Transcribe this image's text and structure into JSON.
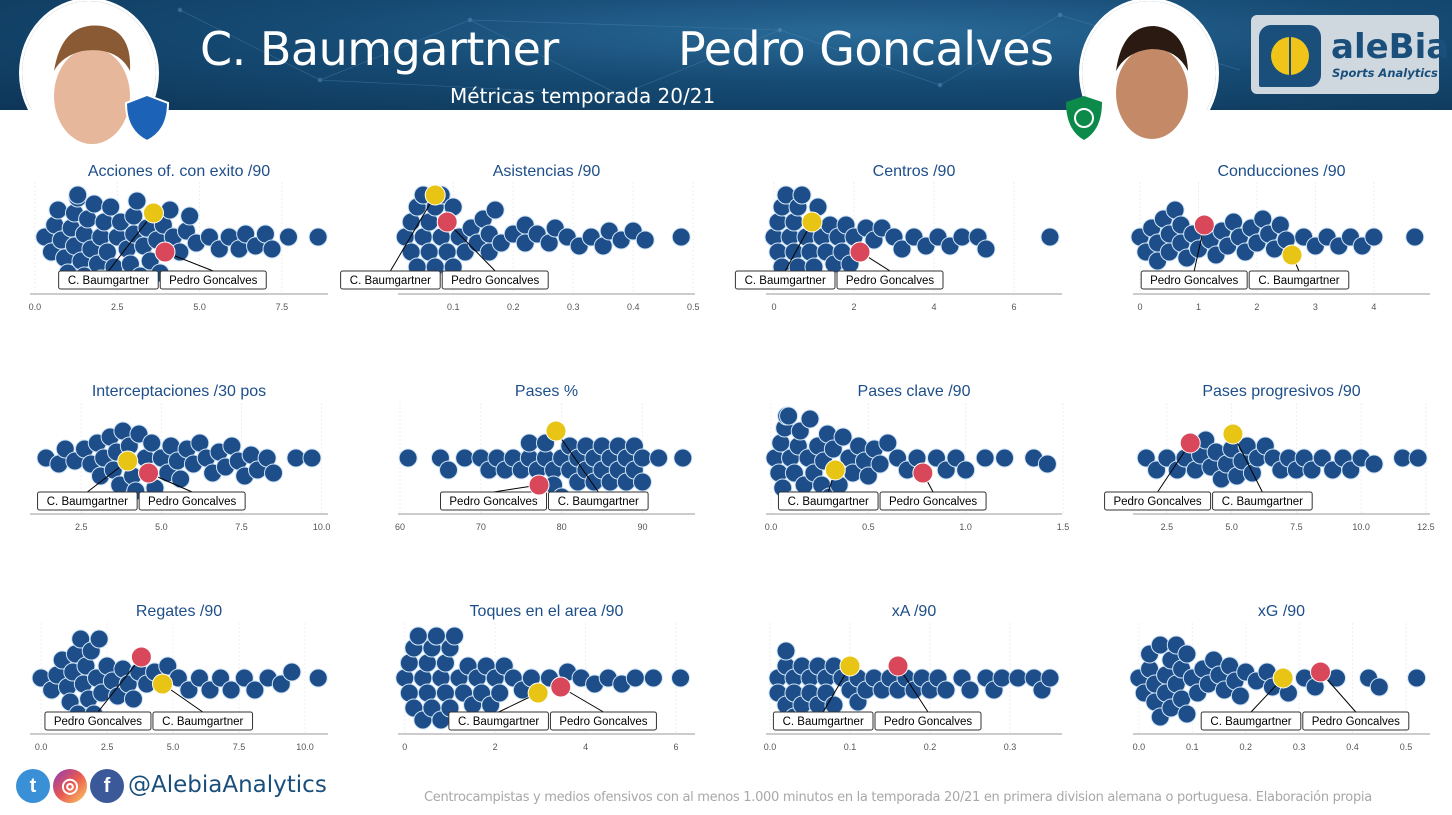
{
  "header": {
    "player_a": "C. Baumgartner",
    "player_b": "Pedro Goncalves",
    "subtitle": "Métricas temporada 20/21",
    "logo_name": "aleBia",
    "logo_sub": "Sports Analytics"
  },
  "footer": {
    "handle": "@AlebiaAnalytics",
    "note": "Centrocampistas y medios ofensivos con al menos 1.000 minutos en la temporada 20/21 en primera division alemana o portuguesa. Elaboración propia",
    "social_icons": [
      "twitter-icon",
      "instagram-icon",
      "facebook-icon"
    ]
  },
  "colors": {
    "swarm": "#1d4e89",
    "player_a": "#e8c414",
    "player_b": "#d9475a",
    "title": "#1d4e89"
  },
  "chart_data": [
    {
      "type": "scatter",
      "subtype": "beeswarm",
      "title": "Acciones of. con exito /90",
      "xlim": [
        -0.15,
        8.9
      ],
      "ticks": [
        0,
        2.5,
        5,
        7.5
      ],
      "tick_labels": [
        "0.0",
        "2.5",
        "5.0",
        "7.5"
      ],
      "values": [
        0.3,
        0.5,
        0.6,
        0.7,
        0.8,
        0.9,
        1.0,
        1.1,
        1.2,
        1.2,
        1.3,
        1.3,
        1.4,
        1.5,
        1.5,
        1.6,
        1.7,
        1.8,
        1.9,
        2.0,
        2.0,
        2.1,
        2.2,
        2.3,
        2.4,
        2.5,
        2.6,
        2.8,
        2.9,
        3.0,
        3.0,
        3.1,
        3.2,
        3.3,
        3.4,
        3.5,
        3.7,
        3.8,
        3.9,
        4.1,
        4.2,
        4.4,
        4.6,
        4.7,
        4.9,
        5.3,
        5.6,
        5.9,
        6.2,
        6.4,
        6.7,
        7.0,
        7.2,
        7.7,
        8.6
      ],
      "highlights": [
        {
          "name": "C. Baumgartner",
          "value": 3.6
        },
        {
          "name": "Pedro Goncalves",
          "value": 3.95
        }
      ]
    },
    {
      "type": "scatter",
      "subtype": "beeswarm",
      "title": "Asistencias /90",
      "xlim": [
        0.008,
        0.503
      ],
      "ticks": [
        0.1,
        0.2,
        0.3,
        0.4,
        0.5
      ],
      "tick_labels": [
        "0.1",
        "0.2",
        "0.3",
        "0.4",
        "0.5"
      ],
      "values": [
        0.02,
        0.03,
        0.03,
        0.04,
        0.04,
        0.05,
        0.05,
        0.05,
        0.06,
        0.06,
        0.07,
        0.07,
        0.08,
        0.08,
        0.08,
        0.09,
        0.1,
        0.1,
        0.11,
        0.12,
        0.13,
        0.14,
        0.15,
        0.16,
        0.16,
        0.17,
        0.18,
        0.2,
        0.22,
        0.22,
        0.24,
        0.26,
        0.27,
        0.29,
        0.31,
        0.33,
        0.35,
        0.36,
        0.38,
        0.4,
        0.42,
        0.48
      ],
      "highlights": [
        {
          "name": "C. Baumgartner",
          "value": 0.07
        },
        {
          "name": "Pedro Goncalves",
          "value": 0.09
        }
      ]
    },
    {
      "type": "scatter",
      "subtype": "beeswarm",
      "title": "Centros /90",
      "xlim": [
        -0.2,
        7.2
      ],
      "ticks": [
        0,
        2,
        4,
        6
      ],
      "tick_labels": [
        "0",
        "2",
        "4",
        "6"
      ],
      "values": [
        0.0,
        0.1,
        0.1,
        0.2,
        0.2,
        0.3,
        0.3,
        0.4,
        0.4,
        0.5,
        0.5,
        0.6,
        0.6,
        0.7,
        0.7,
        0.8,
        0.9,
        1.0,
        1.1,
        1.2,
        1.3,
        1.4,
        1.5,
        1.6,
        1.7,
        1.8,
        1.9,
        2.0,
        2.3,
        2.5,
        2.7,
        3.0,
        3.2,
        3.5,
        3.8,
        4.1,
        4.4,
        4.7,
        5.1,
        5.3,
        6.9
      ],
      "highlights": [
        {
          "name": "C. Baumgartner",
          "value": 0.95
        },
        {
          "name": "Pedro Goncalves",
          "value": 2.15
        }
      ]
    },
    {
      "type": "scatter",
      "subtype": "beeswarm",
      "title": "Conducciones /90",
      "xlim": [
        -0.12,
        4.96
      ],
      "ticks": [
        0,
        1,
        2,
        3,
        4
      ],
      "tick_labels": [
        "0",
        "1",
        "2",
        "3",
        "4"
      ],
      "values": [
        0.0,
        0.1,
        0.2,
        0.3,
        0.3,
        0.4,
        0.5,
        0.5,
        0.6,
        0.7,
        0.7,
        0.8,
        0.9,
        1.0,
        1.2,
        1.3,
        1.4,
        1.5,
        1.6,
        1.7,
        1.8,
        1.9,
        2.0,
        2.1,
        2.2,
        2.3,
        2.4,
        2.5,
        2.8,
        3.0,
        3.2,
        3.4,
        3.6,
        3.8,
        4.0,
        4.7
      ],
      "highlights": [
        {
          "name": "C. Baumgartner",
          "value": 2.6
        },
        {
          "name": "Pedro Goncalves",
          "value": 1.1
        }
      ]
    },
    {
      "type": "scatter",
      "subtype": "beeswarm",
      "title": "Interceptaciones /30 pos",
      "xlim": [
        0.9,
        10.2
      ],
      "ticks": [
        2.5,
        5,
        7.5,
        10
      ],
      "tick_labels": [
        "2.5",
        "5.0",
        "7.5",
        "10.0"
      ],
      "values": [
        1.4,
        1.8,
        2.0,
        2.3,
        2.6,
        2.8,
        3.0,
        3.1,
        3.2,
        3.4,
        3.5,
        3.6,
        3.7,
        3.8,
        4.0,
        4.1,
        4.2,
        4.3,
        4.5,
        4.7,
        4.8,
        5.0,
        5.2,
        5.3,
        5.5,
        5.6,
        5.8,
        6.0,
        6.2,
        6.4,
        6.6,
        6.8,
        7.0,
        7.2,
        7.4,
        7.6,
        7.8,
        8.0,
        8.3,
        8.5,
        9.2,
        9.7
      ],
      "highlights": [
        {
          "name": "C. Baumgartner",
          "value": 3.95
        },
        {
          "name": "Pedro Goncalves",
          "value": 4.6
        }
      ]
    },
    {
      "type": "scatter",
      "subtype": "beeswarm",
      "title": "Pases %",
      "xlim": [
        59.75,
        96.5
      ],
      "ticks": [
        60,
        70,
        80,
        90
      ],
      "tick_labels": [
        "60",
        "70",
        "80",
        "90"
      ],
      "values": [
        61,
        65,
        66,
        68,
        70,
        71,
        72,
        73,
        74,
        75,
        76,
        76,
        77,
        78,
        78,
        79,
        79,
        80,
        80,
        81,
        81,
        82,
        82,
        83,
        83,
        84,
        84,
        85,
        85,
        86,
        86,
        87,
        87,
        88,
        88,
        89,
        89,
        90,
        90,
        92,
        95
      ],
      "highlights": [
        {
          "name": "C. Baumgartner",
          "value": 79.3
        },
        {
          "name": "Pedro Goncalves",
          "value": 77.2
        }
      ]
    },
    {
      "type": "scatter",
      "subtype": "beeswarm",
      "title": "Pases clave /90",
      "xlim": [
        -0.026,
        1.495
      ],
      "ticks": [
        0,
        0.5,
        1,
        1.5
      ],
      "tick_labels": [
        "0.0",
        "0.5",
        "1.0",
        "1.5"
      ],
      "values": [
        0.02,
        0.04,
        0.05,
        0.06,
        0.07,
        0.08,
        0.09,
        0.1,
        0.11,
        0.12,
        0.14,
        0.15,
        0.17,
        0.19,
        0.2,
        0.22,
        0.24,
        0.26,
        0.27,
        0.29,
        0.3,
        0.32,
        0.35,
        0.37,
        0.4,
        0.42,
        0.45,
        0.48,
        0.5,
        0.53,
        0.56,
        0.6,
        0.65,
        0.7,
        0.75,
        0.85,
        0.9,
        0.95,
        1.0,
        1.1,
        1.2,
        1.35,
        1.42
      ],
      "highlights": [
        {
          "name": "C. Baumgartner",
          "value": 0.33
        },
        {
          "name": "Pedro Goncalves",
          "value": 0.78
        }
      ]
    },
    {
      "type": "scatter",
      "subtype": "beeswarm",
      "title": "Pases progresivos /90",
      "xlim": [
        1.19,
        12.66
      ],
      "ticks": [
        2.5,
        5,
        7.5,
        10,
        12.5
      ],
      "tick_labels": [
        "2.5",
        "5.0",
        "7.5",
        "10.0",
        "12.5"
      ],
      "values": [
        1.7,
        2.1,
        2.5,
        2.9,
        3.2,
        3.6,
        3.8,
        4.0,
        4.2,
        4.4,
        4.6,
        4.8,
        5.0,
        5.2,
        5.4,
        5.6,
        5.8,
        6.0,
        6.3,
        6.6,
        6.9,
        7.2,
        7.5,
        7.8,
        8.1,
        8.5,
        8.9,
        9.3,
        9.6,
        10.0,
        10.5,
        11.6,
        12.2
      ],
      "highlights": [
        {
          "name": "C. Baumgartner",
          "value": 5.05
        },
        {
          "name": "Pedro Goncalves",
          "value": 3.4
        }
      ]
    },
    {
      "type": "scatter",
      "subtype": "beeswarm",
      "title": "Regates /90",
      "xlim": [
        -0.42,
        10.87
      ],
      "ticks": [
        0,
        2.5,
        5,
        7.5,
        10
      ],
      "tick_labels": [
        "0.0",
        "2.5",
        "5.0",
        "7.5",
        "10.0"
      ],
      "values": [
        0.0,
        0.4,
        0.6,
        0.8,
        1.0,
        1.1,
        1.2,
        1.3,
        1.4,
        1.5,
        1.6,
        1.7,
        1.8,
        1.9,
        2.0,
        2.1,
        2.2,
        2.3,
        2.5,
        2.7,
        2.9,
        3.1,
        3.3,
        3.5,
        3.7,
        4.0,
        4.3,
        4.8,
        5.2,
        5.6,
        6.0,
        6.4,
        6.8,
        7.2,
        7.7,
        8.1,
        8.6,
        9.1,
        9.5,
        10.5
      ],
      "highlights": [
        {
          "name": "C. Baumgartner",
          "value": 4.6
        },
        {
          "name": "Pedro Goncalves",
          "value": 3.8
        }
      ]
    },
    {
      "type": "scatter",
      "subtype": "beeswarm",
      "title": "Toques en el area /90",
      "xlim": [
        -0.15,
        6.42
      ],
      "ticks": [
        0,
        2,
        4,
        6
      ],
      "tick_labels": [
        "0",
        "2",
        "4",
        "6"
      ],
      "values": [
        0.0,
        0.1,
        0.1,
        0.2,
        0.2,
        0.3,
        0.3,
        0.4,
        0.4,
        0.5,
        0.5,
        0.6,
        0.6,
        0.7,
        0.7,
        0.8,
        0.8,
        0.9,
        0.9,
        1.0,
        1.0,
        1.1,
        1.2,
        1.3,
        1.4,
        1.5,
        1.6,
        1.7,
        1.8,
        1.9,
        2.0,
        2.1,
        2.2,
        2.4,
        2.6,
        2.8,
        3.2,
        3.6,
        3.9,
        4.2,
        4.5,
        4.8,
        5.1,
        5.5,
        6.1
      ],
      "highlights": [
        {
          "name": "C. Baumgartner",
          "value": 2.95
        },
        {
          "name": "Pedro Goncalves",
          "value": 3.45
        }
      ]
    },
    {
      "type": "scatter",
      "subtype": "beeswarm",
      "title": "xA /90",
      "xlim": [
        -0.005,
        0.365
      ],
      "ticks": [
        0,
        0.1,
        0.2,
        0.3
      ],
      "tick_labels": [
        "0.0",
        "0.1",
        "0.2",
        "0.3"
      ],
      "values": [
        0.01,
        0.01,
        0.02,
        0.02,
        0.02,
        0.03,
        0.03,
        0.03,
        0.04,
        0.04,
        0.05,
        0.05,
        0.06,
        0.06,
        0.07,
        0.07,
        0.08,
        0.08,
        0.09,
        0.1,
        0.11,
        0.11,
        0.12,
        0.13,
        0.14,
        0.15,
        0.16,
        0.17,
        0.18,
        0.19,
        0.2,
        0.21,
        0.22,
        0.24,
        0.25,
        0.27,
        0.28,
        0.29,
        0.31,
        0.33,
        0.34,
        0.35
      ],
      "highlights": [
        {
          "name": "C. Baumgartner",
          "value": 0.1
        },
        {
          "name": "Pedro Goncalves",
          "value": 0.16
        }
      ]
    },
    {
      "type": "scatter",
      "subtype": "beeswarm",
      "title": "xG /90",
      "xlim": [
        -0.011,
        0.545
      ],
      "ticks": [
        0,
        0.1,
        0.2,
        0.3,
        0.4,
        0.5
      ],
      "tick_labels": [
        "0.0",
        "0.1",
        "0.2",
        "0.3",
        "0.4",
        "0.5"
      ],
      "values": [
        0.0,
        0.01,
        0.02,
        0.02,
        0.03,
        0.03,
        0.04,
        0.04,
        0.05,
        0.05,
        0.06,
        0.06,
        0.07,
        0.07,
        0.08,
        0.08,
        0.09,
        0.09,
        0.1,
        0.11,
        0.12,
        0.13,
        0.14,
        0.15,
        0.16,
        0.17,
        0.18,
        0.19,
        0.2,
        0.22,
        0.24,
        0.25,
        0.28,
        0.31,
        0.33,
        0.37,
        0.43,
        0.45,
        0.52
      ],
      "highlights": [
        {
          "name": "C. Baumgartner",
          "value": 0.27
        },
        {
          "name": "Pedro Goncalves",
          "value": 0.34
        }
      ]
    }
  ]
}
